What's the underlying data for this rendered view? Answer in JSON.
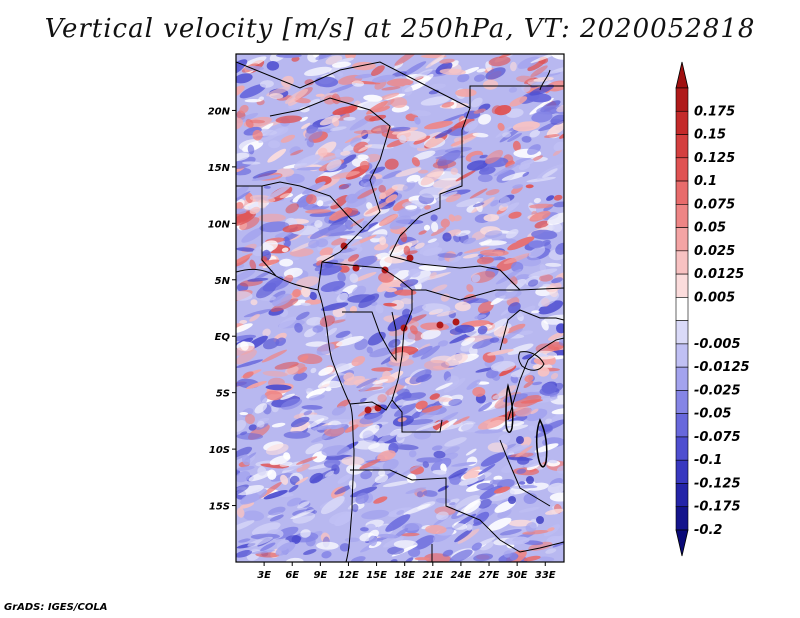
{
  "title": "Vertical velocity [m/s] at 250hPa, VT: 2020052818",
  "credit": "GrADS: IGES/COLA",
  "map": {
    "lon_range": [
      0,
      35
    ],
    "lat_range": [
      -20,
      25
    ],
    "lon_ticks": [
      {
        "value": 3,
        "label": "3E"
      },
      {
        "value": 6,
        "label": "6E"
      },
      {
        "value": 9,
        "label": "9E"
      },
      {
        "value": 12,
        "label": "12E"
      },
      {
        "value": 15,
        "label": "15E"
      },
      {
        "value": 18,
        "label": "18E"
      },
      {
        "value": 21,
        "label": "21E"
      },
      {
        "value": 24,
        "label": "24E"
      },
      {
        "value": 27,
        "label": "27E"
      },
      {
        "value": 30,
        "label": "30E"
      },
      {
        "value": 33,
        "label": "33E"
      }
    ],
    "lat_ticks": [
      {
        "value": 20,
        "label": "20N"
      },
      {
        "value": 15,
        "label": "15N"
      },
      {
        "value": 10,
        "label": "10N"
      },
      {
        "value": 5,
        "label": "5N"
      },
      {
        "value": 0,
        "label": "EQ"
      },
      {
        "value": -5,
        "label": "5S"
      },
      {
        "value": -10,
        "label": "10S"
      },
      {
        "value": -15,
        "label": "15S"
      }
    ]
  },
  "colorbar": {
    "levels": [
      {
        "label": "0.175",
        "color": "#b01a1a"
      },
      {
        "label": "0.15",
        "color": "#c42a2a"
      },
      {
        "label": "0.125",
        "color": "#d43f3f"
      },
      {
        "label": "0.1",
        "color": "#e05252"
      },
      {
        "label": "0.075",
        "color": "#e86b6b"
      },
      {
        "label": "0.05",
        "color": "#ee8585"
      },
      {
        "label": "0.025",
        "color": "#f4a4a4"
      },
      {
        "label": "0.0125",
        "color": "#f8c2c2"
      },
      {
        "label": "0.005",
        "color": "#fbdcdc"
      },
      {
        "label": "",
        "color": "#ffffff"
      },
      {
        "label": "-0.005",
        "color": "#dadaf8"
      },
      {
        "label": "-0.0125",
        "color": "#c0c0f4"
      },
      {
        "label": "-0.025",
        "color": "#a3a3ee"
      },
      {
        "label": "-0.05",
        "color": "#8585e6"
      },
      {
        "label": "-0.075",
        "color": "#6868dc"
      },
      {
        "label": "-0.1",
        "color": "#4e4ed0"
      },
      {
        "label": "-0.125",
        "color": "#3838c0"
      },
      {
        "label": "-0.175",
        "color": "#2424a8"
      },
      {
        "label": "-0.2",
        "color": "#14148c"
      }
    ],
    "top_arrow_color": "#a01010",
    "bottom_arrow_color": "#0a0a78"
  }
}
